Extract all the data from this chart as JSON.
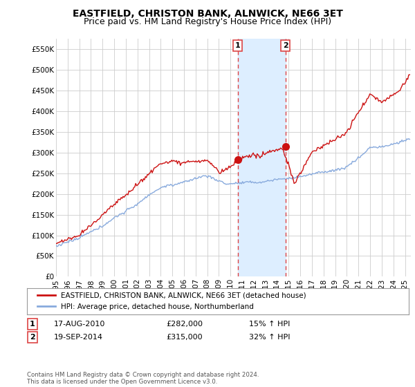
{
  "title": "EASTFIELD, CHRISTON BANK, ALNWICK, NE66 3ET",
  "subtitle": "Price paid vs. HM Land Registry's House Price Index (HPI)",
  "ylim": [
    0,
    575000
  ],
  "yticks": [
    0,
    50000,
    100000,
    150000,
    200000,
    250000,
    300000,
    350000,
    400000,
    450000,
    500000,
    550000
  ],
  "ytick_labels": [
    "£0",
    "£50K",
    "£100K",
    "£150K",
    "£200K",
    "£250K",
    "£300K",
    "£350K",
    "£400K",
    "£450K",
    "£500K",
    "£550K"
  ],
  "xlim_start": 1995.0,
  "xlim_end": 2025.5,
  "xtick_years": [
    1995,
    1996,
    1997,
    1998,
    1999,
    2000,
    2001,
    2002,
    2003,
    2004,
    2005,
    2006,
    2007,
    2008,
    2009,
    2010,
    2011,
    2012,
    2013,
    2014,
    2015,
    2016,
    2017,
    2018,
    2019,
    2020,
    2021,
    2022,
    2023,
    2024,
    2025
  ],
  "sale1_x": 2010.62,
  "sale1_y": 282000,
  "sale2_x": 2014.72,
  "sale2_y": 315000,
  "sale1_label": "1",
  "sale2_label": "2",
  "shade_color": "#ddeeff",
  "vline_color": "#dd4444",
  "red_line_color": "#cc1111",
  "blue_line_color": "#88aadd",
  "legend_red_label": "EASTFIELD, CHRISTON BANK, ALNWICK, NE66 3ET (detached house)",
  "legend_blue_label": "HPI: Average price, detached house, Northumberland",
  "table_row1": [
    "1",
    "17-AUG-2010",
    "£282,000",
    "15% ↑ HPI"
  ],
  "table_row2": [
    "2",
    "19-SEP-2014",
    "£315,000",
    "32% ↑ HPI"
  ],
  "footer": "Contains HM Land Registry data © Crown copyright and database right 2024.\nThis data is licensed under the Open Government Licence v3.0.",
  "background_color": "#ffffff",
  "grid_color": "#cccccc",
  "title_fontsize": 10,
  "subtitle_fontsize": 9,
  "tick_fontsize": 7.5
}
